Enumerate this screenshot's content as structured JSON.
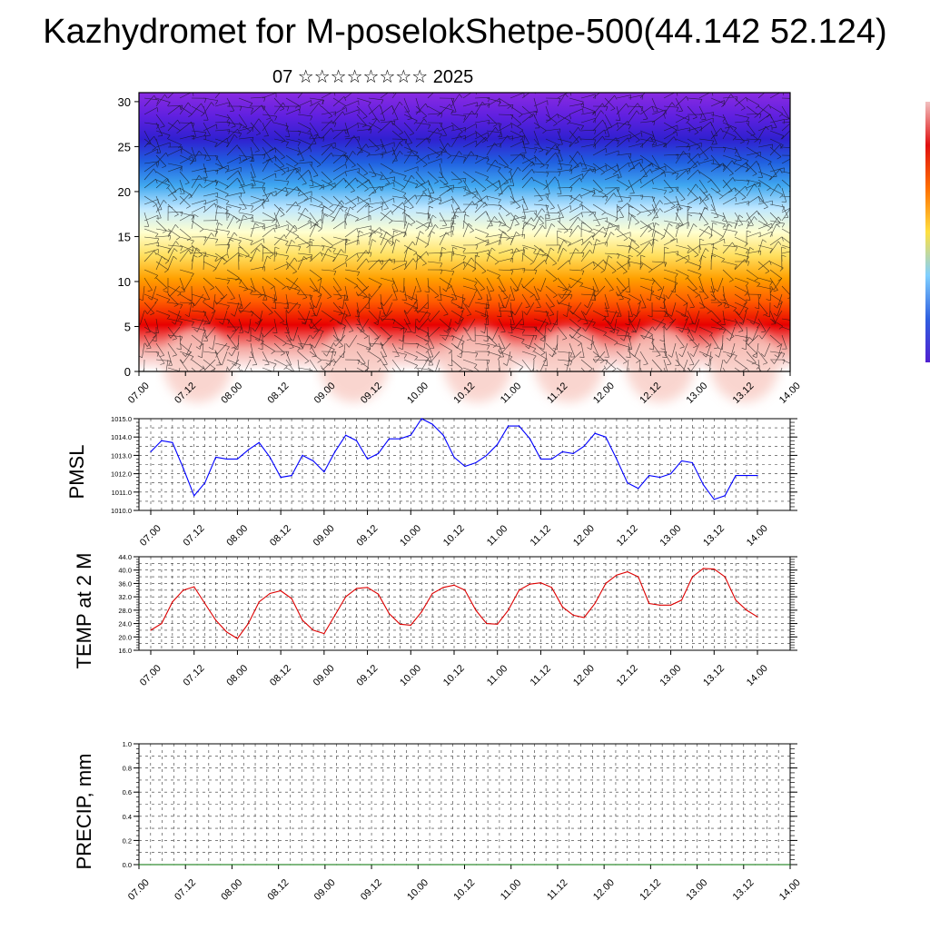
{
  "title": "Kazhydromet for M-poselokShetpe-500(44.142 52.124)",
  "subtitle": "07 ☆☆☆☆☆☆☆☆ 2025",
  "chart_data": [
    {
      "type": "heatmap",
      "name": "cross-section",
      "ylim": [
        0,
        31
      ],
      "yticks": [
        0,
        5,
        10,
        15,
        20,
        25,
        30
      ],
      "xticks": [
        "07.00",
        "07.12",
        "08.00",
        "08.12",
        "09.00",
        "09.12",
        "10.00",
        "10.12",
        "11.00",
        "11.12",
        "12.00",
        "12.12",
        "13.00",
        "13.12",
        "14.00"
      ],
      "colormap": [
        "#ffffff",
        "#f4a6a0",
        "#e80000",
        "#ff5a00",
        "#ffa000",
        "#ffe060",
        "#ffffd0",
        "#c0e8ff",
        "#40a8f0",
        "#2060e0",
        "#3020d0",
        "#6020e0",
        "#8a2be2"
      ],
      "colorbar_colors": [
        "#f2c0c0",
        "#e01010",
        "#ff7000",
        "#ffe040",
        "#80d0ff",
        "#3060e0",
        "#5020d0"
      ]
    },
    {
      "type": "line",
      "name": "pmsl",
      "ylabel": "PMSL",
      "ylim": [
        1010,
        1015
      ],
      "yticks": [
        1010.0,
        1011.0,
        1012.0,
        1013.0,
        1014.0,
        1015.0
      ],
      "ytick_labels": [
        "1010.0",
        "1011.0",
        "1012.0",
        "1013.0",
        "1014.0",
        "1015.0"
      ],
      "xticks": [
        "07.00",
        "07.12",
        "08.00",
        "08.12",
        "09.00",
        "09.12",
        "10.00",
        "10.12",
        "11.00",
        "11.12",
        "12.00",
        "12.12",
        "13.00",
        "13.12",
        "14.00"
      ],
      "color": "#0000ff",
      "grid": true,
      "values": [
        1013.2,
        1013.8,
        1013.7,
        1012.3,
        1010.8,
        1011.5,
        1012.9,
        1012.8,
        1012.8,
        1013.3,
        1013.7,
        1012.9,
        1011.8,
        1011.9,
        1013.0,
        1012.7,
        1012.1,
        1013.2,
        1014.1,
        1013.8,
        1012.8,
        1013.1,
        1013.9,
        1013.9,
        1014.1,
        1015.0,
        1014.7,
        1014.1,
        1012.9,
        1012.4,
        1012.6,
        1013.0,
        1013.6,
        1014.6,
        1014.6,
        1013.9,
        1012.8,
        1012.8,
        1013.2,
        1013.1,
        1013.5,
        1014.2,
        1014.0,
        1012.8,
        1011.5,
        1011.2,
        1011.9,
        1011.8,
        1012.0,
        1012.7,
        1012.6,
        1011.4,
        1010.6,
        1010.8,
        1011.9,
        1011.9,
        1011.9
      ]
    },
    {
      "type": "line",
      "name": "temp",
      "ylabel": "TEMP at 2 M",
      "ylim": [
        16,
        44
      ],
      "yticks": [
        16,
        20,
        24,
        28,
        32,
        36,
        40,
        44
      ],
      "ytick_labels": [
        "16.0",
        "20.0",
        "24.0",
        "28.0",
        "32.0",
        "36.0",
        "40.0",
        "44.0"
      ],
      "xticks": [
        "07.00",
        "07.12",
        "08.00",
        "08.12",
        "09.00",
        "09.12",
        "10.00",
        "10.12",
        "11.00",
        "11.12",
        "12.00",
        "12.12",
        "13.00",
        "13.12",
        "14.00"
      ],
      "color": "#dd0000",
      "grid": true,
      "values": [
        22.0,
        24.0,
        30.5,
        34.0,
        35.0,
        30.0,
        25.0,
        21.5,
        19.5,
        24.0,
        30.5,
        33.0,
        33.8,
        31.5,
        25.0,
        22.0,
        21.0,
        26.5,
        32.0,
        34.5,
        34.8,
        32.8,
        27.0,
        23.8,
        23.5,
        27.5,
        33.0,
        34.8,
        35.5,
        34.0,
        28.0,
        24.0,
        23.8,
        28.0,
        34.0,
        35.8,
        36.2,
        34.8,
        29.0,
        26.5,
        25.8,
        30.0,
        36.0,
        38.5,
        39.5,
        38.0,
        30.0,
        29.5,
        29.5,
        31.0,
        38.0,
        40.5,
        40.3,
        38.0,
        31.0,
        28.0,
        26.0
      ]
    },
    {
      "type": "line",
      "name": "precip",
      "ylabel": "PRECIP, mm",
      "ylim": [
        0,
        1
      ],
      "yticks": [
        0,
        0.2,
        0.4,
        0.6,
        0.8,
        1.0
      ],
      "ytick_labels": [
        "0.0",
        "0.2",
        "0.4",
        "0.6",
        "0.8",
        "1.0"
      ],
      "xticks": [
        "07.00",
        "07.12",
        "08.00",
        "08.12",
        "09.00",
        "09.12",
        "10.00",
        "10.12",
        "11.00",
        "11.12",
        "12.00",
        "12.12",
        "13.00",
        "13.12",
        "14.00"
      ],
      "color": "#007000",
      "grid": true,
      "values": [
        0,
        0,
        0,
        0,
        0,
        0,
        0,
        0,
        0,
        0,
        0,
        0,
        0,
        0,
        0,
        0,
        0,
        0,
        0,
        0,
        0,
        0,
        0,
        0,
        0,
        0,
        0,
        0,
        0,
        0,
        0,
        0,
        0,
        0,
        0,
        0,
        0,
        0,
        0,
        0,
        0,
        0,
        0,
        0,
        0,
        0,
        0,
        0,
        0,
        0,
        0,
        0,
        0,
        0,
        0,
        0,
        0
      ]
    }
  ]
}
